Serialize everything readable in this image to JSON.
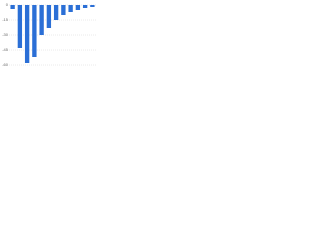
{
  "chart_data": {
    "type": "bar",
    "categories": [
      null,
      null,
      null,
      null,
      null,
      null,
      null,
      null,
      null,
      null,
      null,
      null
    ],
    "values": [
      -4,
      -43,
      -58,
      -52,
      -30,
      -23,
      -15,
      -10,
      -7,
      -5,
      -3,
      -2
    ],
    "color": "#2b6fd6",
    "ylim": [
      -60,
      0
    ],
    "yticks": [
      0,
      -15,
      -30,
      -45,
      -60
    ],
    "grid": true
  }
}
